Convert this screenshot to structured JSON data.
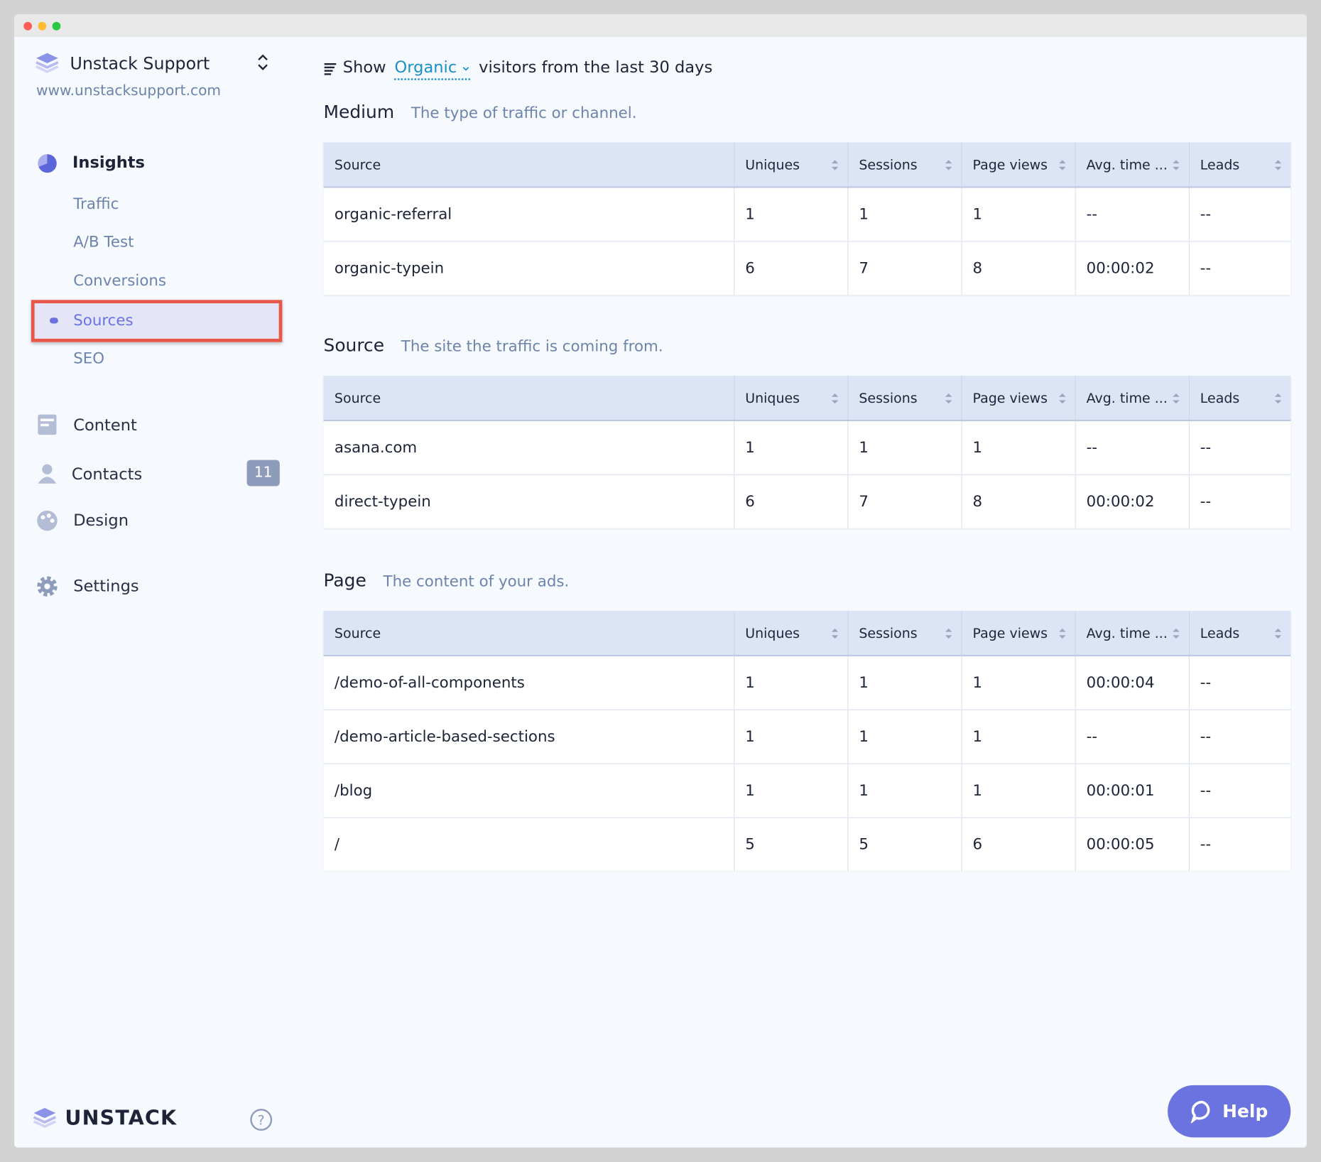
{
  "sidebar": {
    "site_name": "Unstack Support",
    "site_url": "www.unstacksupport.com",
    "insights": "Insights",
    "sub_items": [
      "Traffic",
      "A/B Test",
      "Conversions",
      "Sources",
      "SEO"
    ],
    "content": "Content",
    "contacts": "Contacts",
    "contacts_badge": 11,
    "design": "Design",
    "settings": "Settings",
    "brand": "UNSTACK"
  },
  "filter": {
    "prefix": "Show",
    "selected": "Organic",
    "suffix": "visitors from the last 30 days"
  },
  "help": "Help",
  "tables": [
    {
      "title": "Medium",
      "description": "The type of traffic or channel.",
      "columns": [
        "Source",
        "Uniques",
        "Sessions",
        "Page views",
        "Avg. time ...",
        "Leads"
      ],
      "rows": [
        [
          "organic-referral",
          "1",
          "1",
          "1",
          "--",
          "--"
        ],
        [
          "organic-typein",
          "6",
          "7",
          "8",
          "00:00:02",
          "--"
        ]
      ]
    },
    {
      "title": "Source",
      "description": "The site the traffic is coming from.",
      "columns": [
        "Source",
        "Uniques",
        "Sessions",
        "Page views",
        "Avg. time ...",
        "Leads"
      ],
      "rows": [
        [
          "asana.com",
          "1",
          "1",
          "1",
          "--",
          "--"
        ],
        [
          "direct-typein",
          "6",
          "7",
          "8",
          "00:00:02",
          "--"
        ]
      ]
    },
    {
      "title": "Page",
      "description": "The content of your ads.",
      "columns": [
        "Source",
        "Uniques",
        "Sessions",
        "Page views",
        "Avg. time ...",
        "Leads"
      ],
      "rows": [
        [
          "/demo-of-all-components",
          "1",
          "1",
          "1",
          "00:00:04",
          "--"
        ],
        [
          "/demo-article-based-sections",
          "1",
          "1",
          "1",
          "--",
          "--"
        ],
        [
          "/blog",
          "1",
          "1",
          "1",
          "00:00:01",
          "--"
        ],
        [
          "/",
          "5",
          "5",
          "6",
          "00:00:05",
          "--"
        ]
      ]
    }
  ]
}
